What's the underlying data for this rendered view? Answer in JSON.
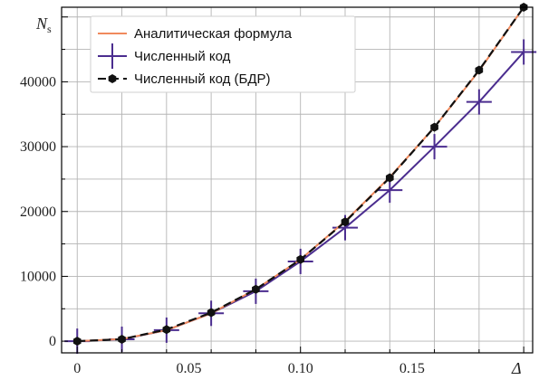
{
  "chart_data": {
    "type": "line",
    "xlabel": "Δ",
    "ylabel_main": "N",
    "ylabel_sub": "s",
    "x_ticks": [
      0,
      0.05,
      0.1,
      0.15
    ],
    "x_tick_labels": [
      "0",
      "0.05",
      "0.10",
      "0.15"
    ],
    "y_ticks": [
      0,
      10000,
      20000,
      30000,
      40000
    ],
    "y_tick_labels": [
      "0",
      "10000",
      "20000",
      "30000",
      "40000"
    ],
    "xlim": [
      -0.007,
      0.204
    ],
    "ylim": [
      -1800,
      51500
    ],
    "grid": true,
    "legend_position": "top-left",
    "series": [
      {
        "name": "Аналитическая формула",
        "color": "#f08a5d",
        "style": "solid",
        "marker": "none",
        "x": [
          0,
          0.02,
          0.04,
          0.06,
          0.08,
          0.1,
          0.12,
          0.14,
          0.16,
          0.18,
          0.2
        ],
        "y": [
          0,
          330,
          1700,
          4300,
          8000,
          12600,
          18500,
          25300,
          33000,
          41700,
          51500
        ]
      },
      {
        "name": "Численный код",
        "color": "#4b2d8f",
        "style": "solid",
        "marker": "plus",
        "x": [
          0,
          0.02,
          0.04,
          0.06,
          0.08,
          0.1,
          0.12,
          0.14,
          0.16,
          0.18,
          0.2
        ],
        "y": [
          0,
          300,
          1700,
          4300,
          7700,
          12300,
          17500,
          23300,
          30000,
          36900,
          44600
        ]
      },
      {
        "name": "Численный код (БДР)",
        "color": "#111111",
        "style": "dashed",
        "marker": "hexagon",
        "x": [
          0,
          0.02,
          0.04,
          0.06,
          0.08,
          0.1,
          0.12,
          0.14,
          0.16,
          0.18,
          0.2
        ],
        "y": [
          0,
          300,
          1800,
          4400,
          8000,
          12600,
          18400,
          25200,
          33000,
          41800,
          51500
        ]
      }
    ]
  }
}
